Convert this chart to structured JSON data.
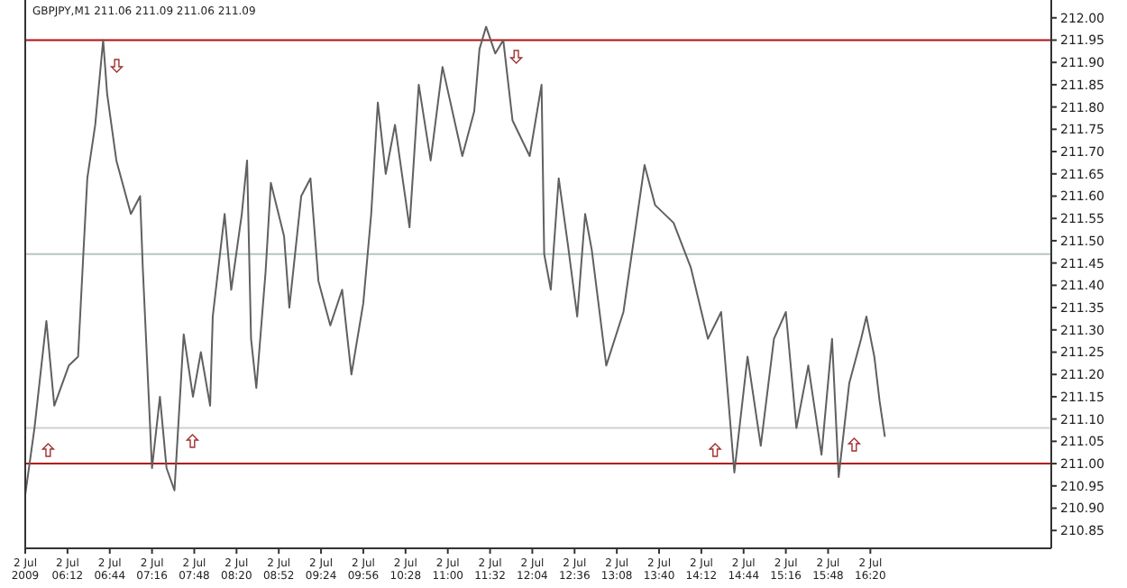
{
  "chart_data": {
    "type": "line",
    "title": "GBPJPY,M1 211.06 211.09 211.06 211.09",
    "x": [
      "2009-07-02T05:40",
      "2009-07-02T05:47",
      "2009-07-02T05:56",
      "2009-07-02T06:02",
      "2009-07-02T06:13",
      "2009-07-02T06:20",
      "2009-07-02T06:24",
      "2009-07-02T06:27",
      "2009-07-02T06:33",
      "2009-07-02T06:39",
      "2009-07-02T06:42",
      "2009-07-02T06:49",
      "2009-07-02T07:00",
      "2009-07-02T07:07",
      "2009-07-02T07:09",
      "2009-07-02T07:16",
      "2009-07-02T07:22",
      "2009-07-02T07:27",
      "2009-07-02T07:33",
      "2009-07-02T07:40",
      "2009-07-02T07:47",
      "2009-07-02T07:53",
      "2009-07-02T08:00",
      "2009-07-02T08:02",
      "2009-07-02T08:11",
      "2009-07-02T08:16",
      "2009-07-02T08:24",
      "2009-07-02T08:28",
      "2009-07-02T08:31",
      "2009-07-02T08:35",
      "2009-07-02T08:42",
      "2009-07-02T08:46",
      "2009-07-02T08:56",
      "2009-07-02T09:00",
      "2009-07-02T09:09",
      "2009-07-02T09:16",
      "2009-07-02T09:22",
      "2009-07-02T09:31",
      "2009-07-02T09:40",
      "2009-07-02T09:47",
      "2009-07-02T09:56",
      "2009-07-02T10:02",
      "2009-07-02T10:07",
      "2009-07-02T10:13",
      "2009-07-02T10:20",
      "2009-07-02T10:31",
      "2009-07-02T10:38",
      "2009-07-02T10:47",
      "2009-07-02T10:56",
      "2009-07-02T11:11",
      "2009-07-02T11:20",
      "2009-07-02T11:24",
      "2009-07-02T11:29",
      "2009-07-02T11:36",
      "2009-07-02T11:42",
      "2009-07-02T11:49",
      "2009-07-02T12:02",
      "2009-07-02T12:11",
      "2009-07-02T12:13",
      "2009-07-02T12:18",
      "2009-07-02T12:24",
      "2009-07-02T12:31",
      "2009-07-02T12:38",
      "2009-07-02T12:44",
      "2009-07-02T12:49",
      "2009-07-02T13:00",
      "2009-07-02T13:13",
      "2009-07-02T13:29",
      "2009-07-02T13:37",
      "2009-07-02T13:51",
      "2009-07-02T14:04",
      "2009-07-02T14:17",
      "2009-07-02T14:27",
      "2009-07-02T14:37",
      "2009-07-02T14:47",
      "2009-07-02T14:57",
      "2009-07-02T15:07",
      "2009-07-02T15:16",
      "2009-07-02T15:24",
      "2009-07-02T15:33",
      "2009-07-02T15:43",
      "2009-07-02T15:51",
      "2009-07-02T15:56",
      "2009-07-02T16:04",
      "2009-07-02T16:13",
      "2009-07-02T16:17",
      "2009-07-02T16:23",
      "2009-07-02T16:27",
      "2009-07-02T16:31"
    ],
    "series": [
      {
        "color": "#606060",
        "values": [
          210.93,
          211.08,
          211.32,
          211.13,
          211.22,
          211.24,
          211.47,
          211.64,
          211.76,
          211.95,
          211.83,
          211.68,
          211.56,
          211.6,
          211.44,
          210.99,
          211.15,
          210.99,
          210.94,
          211.29,
          211.15,
          211.25,
          211.13,
          211.33,
          211.56,
          211.39,
          211.56,
          211.68,
          211.28,
          211.17,
          211.43,
          211.63,
          211.51,
          211.35,
          211.6,
          211.64,
          211.41,
          211.31,
          211.39,
          211.2,
          211.36,
          211.56,
          211.81,
          211.65,
          211.76,
          211.53,
          211.85,
          211.68,
          211.89,
          211.69,
          211.79,
          211.93,
          211.98,
          211.92,
          211.95,
          211.77,
          211.69,
          211.85,
          211.47,
          211.39,
          211.64,
          211.49,
          211.33,
          211.56,
          211.48,
          211.22,
          211.34,
          211.67,
          211.58,
          211.54,
          211.44,
          211.28,
          211.34,
          210.98,
          211.24,
          211.04,
          211.28,
          211.34,
          211.08,
          211.22,
          211.02,
          211.28,
          210.97,
          211.18,
          211.28,
          211.33,
          211.24,
          211.14,
          211.06
        ]
      }
    ],
    "xlim": [
      "2009-07-02T05:40",
      "2009-07-02T18:37"
    ],
    "ylim": [
      210.81,
      212.04
    ],
    "xticks": [
      {
        "value": "2009-07-02T05:40",
        "label": "2 Jul 2009"
      },
      {
        "value": "2009-07-02T06:12",
        "label": "2 Jul 06:12"
      },
      {
        "value": "2009-07-02T06:44",
        "label": "2 Jul 06:44"
      },
      {
        "value": "2009-07-02T07:16",
        "label": "2 Jul 07:16"
      },
      {
        "value": "2009-07-02T07:48",
        "label": "2 Jul 07:48"
      },
      {
        "value": "2009-07-02T08:20",
        "label": "2 Jul 08:20"
      },
      {
        "value": "2009-07-02T08:52",
        "label": "2 Jul 08:52"
      },
      {
        "value": "2009-07-02T09:24",
        "label": "2 Jul 09:24"
      },
      {
        "value": "2009-07-02T09:56",
        "label": "2 Jul 09:56"
      },
      {
        "value": "2009-07-02T10:28",
        "label": "2 Jul 10:28"
      },
      {
        "value": "2009-07-02T11:00",
        "label": "2 Jul 11:00"
      },
      {
        "value": "2009-07-02T11:32",
        "label": "2 Jul 11:32"
      },
      {
        "value": "2009-07-02T12:04",
        "label": "2 Jul 12:04"
      },
      {
        "value": "2009-07-02T12:36",
        "label": "2 Jul 12:36"
      },
      {
        "value": "2009-07-02T13:08",
        "label": "2 Jul 13:08"
      },
      {
        "value": "2009-07-02T13:40",
        "label": "2 Jul 13:40"
      },
      {
        "value": "2009-07-02T14:12",
        "label": "2 Jul 14:12"
      },
      {
        "value": "2009-07-02T14:44",
        "label": "2 Jul 14:44"
      },
      {
        "value": "2009-07-02T15:16",
        "label": "2 Jul 15:16"
      },
      {
        "value": "2009-07-02T15:48",
        "label": "2 Jul 15:48"
      },
      {
        "value": "2009-07-02T16:20",
        "label": "2 Jul 16:20"
      }
    ],
    "yticks": [
      210.85,
      {
        "value": 210.9,
        "label": "210.90"
      },
      210.95,
      {
        "value": 211,
        "label": "211.00"
      },
      211.05,
      {
        "value": 211.1,
        "label": "211.10"
      },
      211.15,
      {
        "value": 211.2,
        "label": "211.20"
      },
      211.25,
      {
        "value": 211.3,
        "label": "211.30"
      },
      211.35,
      {
        "value": 211.4,
        "label": "211.40"
      },
      211.45,
      {
        "value": 211.5,
        "label": "211.50"
      },
      211.55,
      {
        "value": 211.6,
        "label": "211.60"
      },
      211.65,
      {
        "value": 211.7,
        "label": "211.70"
      },
      211.75,
      {
        "value": 211.8,
        "label": "211.80"
      },
      211.85,
      {
        "value": 211.9,
        "label": "211.90"
      },
      211.95,
      {
        "value": 212,
        "label": "212.00"
      }
    ],
    "ref_lines": [
      {
        "axis": "y",
        "value": 211.95,
        "color": "#b01010"
      },
      {
        "axis": "y",
        "value": 211.0,
        "color": "#b01010"
      },
      {
        "axis": "y",
        "value": 211.47,
        "color": "#b8c4c4"
      },
      {
        "axis": "y",
        "value": 211.08,
        "color": "#d0d0d0"
      }
    ],
    "grid": false,
    "marker": "none",
    "line_style": "solid"
  }
}
